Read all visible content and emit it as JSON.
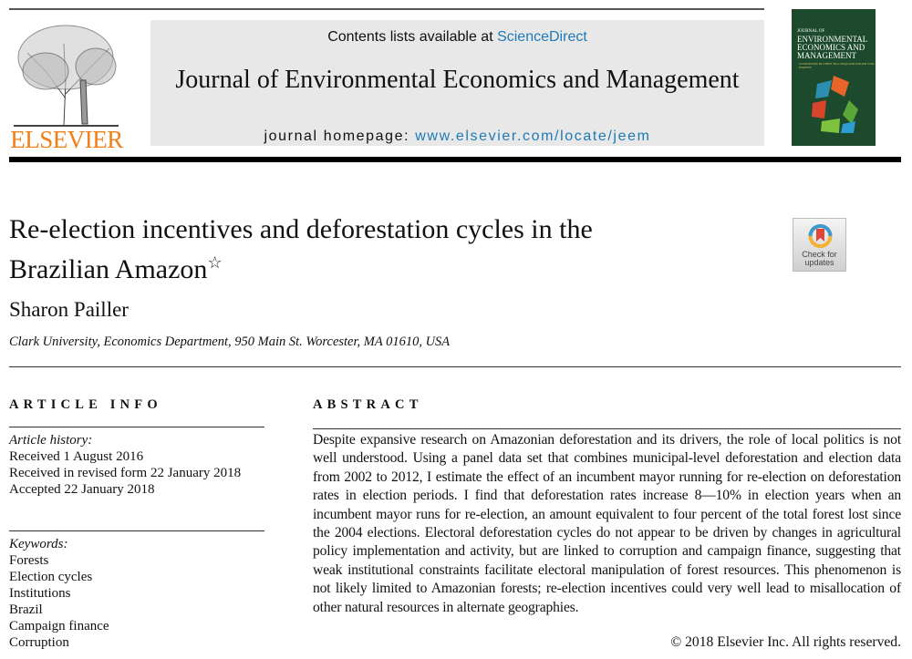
{
  "masthead": {
    "publisher_logo_text": "ELSEVIER",
    "contents_prefix": "Contents lists available at ",
    "contents_link": "ScienceDirect",
    "journal_title": "Journal of Environmental Economics and Management",
    "homepage_prefix": "journal homepage: ",
    "homepage_link": "www.elsevier.com/locate/jeem",
    "cover": {
      "line1": "JOURNAL OF",
      "line2": "ENVIRONMENTAL ECONOMICS AND MANAGEMENT",
      "editors": "CO-EDITORS IN CHIEF TILL REQUATE ROGER VON HAEFEN"
    },
    "link_color": "#1f7ab5",
    "logo_color": "#f07f16",
    "cover_color": "#1d4a2c"
  },
  "article": {
    "title_line1": "Re-election incentives and deforestation cycles in the",
    "title_line2": "Brazilian Amazon",
    "title_mark": "☆",
    "check_updates": "Check for updates",
    "author": "Sharon Pailler",
    "affiliation": "Clark University, Economics Department, 950 Main St. Worcester, MA 01610, USA"
  },
  "article_info": {
    "heading": "ARTICLE INFO",
    "history_label": "Article history:",
    "history": [
      "Received 1 August 2016",
      "Received in revised form 22 January 2018",
      "Accepted 22 January 2018"
    ],
    "keywords_label": "Keywords:",
    "keywords": [
      "Forests",
      "Election cycles",
      "Institutions",
      "Brazil",
      "Campaign finance",
      "Corruption"
    ]
  },
  "abstract": {
    "heading": "ABSTRACT",
    "text": "Despite expansive research on Amazonian deforestation and its drivers, the role of local politics is not well understood. Using a panel data set that combines municipal-level deforestation and election data from 2002 to 2012, I estimate the effect of an incumbent mayor running for re-election on deforestation rates in election periods. I find that deforestation rates increase 8—10% in election years when an incumbent mayor runs for re-election, an amount equivalent to four percent of the total forest lost since the 2004 elections. Electoral deforestation cycles do not appear to be driven by changes in agricultural policy implementation and activity, but are linked to corruption and campaign finance, suggesting that weak institutional constraints facilitate electoral manipulation of forest resources. This phenomenon is not likely limited to Amazonian forests; re-election incentives could very well lead to misallocation of other natural resources in alternate geographies.",
    "copyright": "© 2018 Elsevier Inc. All rights reserved."
  }
}
